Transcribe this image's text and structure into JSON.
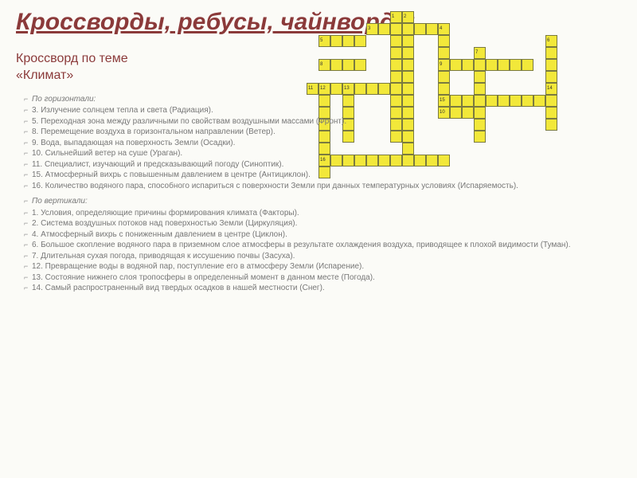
{
  "title": "Кроссворды, ребусы, чайнворды",
  "subtitle_line1": "Кроссворд по теме",
  "subtitle_line2": "«Климат»",
  "horiz_head": "По горизонтали:",
  "horiz": [
    "3. Излучение солнцем тепла и света (Радиация).",
    "5. Переходная зона между различными по свойствам воздушными массами (Фронт).",
    "8. Перемещение воздуха в горизонтальном направлении (Ветер).",
    "9. Вода, выпадающая на поверхность Земли (Осадки).",
    "10. Сильнейший ветер на суше (Ураган).",
    "11. Специалист, изучающий и предсказывающий погоду (Синоптик).",
    "15. Атмосферный вихрь с повышенным давлением в центре (Антициклон).",
    "16. Количество водяного пара, способного испариться с поверхности Земли при данных температурных условиях (Испаряемость)."
  ],
  "vert_head": "По вертикали:",
  "vert": [
    "1. Условия, определяющие причины формирования климата (Факторы).",
    "2. Система воздушных потоков над поверхностью Земли (Циркуляция).",
    "4. Атмосферный вихрь с пониженным давлением в центре (Циклон).",
    "6. Большое скопление водяного пара в приземном слое атмосферы в результате охлаждения воздуха, приводящее к плохой видимости (Туман).",
    "7. Длительная сухая погода, приводящая к иссушению почвы (Засуха).",
    "12. Превращение воды в водяной пар, поступление его в атмосферу Земли (Испарение).",
    "13. Состояние нижнего слоя тропосферы в определенный момент в данном месте (Погода).",
    "14. Самый распространенный вид твердых осадков в нашей местности (Снег)."
  ],
  "crossword": {
    "cell_size": 15,
    "fill_color": "#f2e83a",
    "border_color": "#7a7a40",
    "rows": [
      "........12..............",
      "......3.....4...........",
      "..5..................6..",
      "...............7........",
      "..8.........9...........",
      "........................",
      ".bc..d...............e..",
      "........................",
      "............f...........",
      "........................",
      "........................",
      "........................",
      "..g.....................",
      "........................"
    ],
    "row_defs": [
      [
        [
          8,
          1,
          "1"
        ],
        [
          9,
          1,
          "2"
        ]
      ],
      [
        [
          6,
          1,
          "3"
        ],
        [
          7,
          5,
          ""
        ],
        [
          12,
          1,
          "4"
        ]
      ],
      [
        [
          2,
          1,
          "5"
        ],
        [
          3,
          3,
          ""
        ],
        [
          8,
          2,
          ""
        ],
        [
          12,
          1,
          ""
        ],
        [
          21,
          1,
          "6"
        ]
      ],
      [
        [
          8,
          2,
          ""
        ],
        [
          12,
          1,
          ""
        ],
        [
          15,
          1,
          "7"
        ],
        [
          21,
          1,
          ""
        ]
      ],
      [
        [
          2,
          1,
          "8"
        ],
        [
          3,
          3,
          ""
        ],
        [
          8,
          2,
          ""
        ],
        [
          12,
          1,
          "9"
        ],
        [
          13,
          7,
          ""
        ],
        [
          21,
          1,
          ""
        ]
      ],
      [
        [
          8,
          2,
          ""
        ],
        [
          12,
          1,
          ""
        ],
        [
          15,
          1,
          ""
        ],
        [
          21,
          1,
          ""
        ]
      ],
      [
        [
          1,
          1,
          "11"
        ],
        [
          2,
          1,
          "12"
        ],
        [
          3,
          1,
          ""
        ],
        [
          4,
          1,
          "13"
        ],
        [
          5,
          5,
          ""
        ],
        [
          12,
          1,
          ""
        ],
        [
          15,
          1,
          ""
        ],
        [
          21,
          1,
          "14"
        ]
      ],
      [
        [
          2,
          1,
          ""
        ],
        [
          4,
          1,
          ""
        ],
        [
          8,
          2,
          ""
        ],
        [
          12,
          1,
          "15"
        ],
        [
          13,
          9,
          ""
        ]
      ],
      [
        [
          2,
          1,
          ""
        ],
        [
          4,
          1,
          ""
        ],
        [
          8,
          2,
          ""
        ],
        [
          12,
          1,
          "10"
        ],
        [
          13,
          3,
          ""
        ],
        [
          21,
          1,
          ""
        ]
      ],
      [
        [
          2,
          1,
          ""
        ],
        [
          4,
          1,
          ""
        ],
        [
          8,
          2,
          ""
        ],
        [
          15,
          1,
          ""
        ],
        [
          21,
          1,
          ""
        ]
      ],
      [
        [
          2,
          1,
          ""
        ],
        [
          4,
          1,
          ""
        ],
        [
          8,
          2,
          ""
        ],
        [
          15,
          1,
          ""
        ]
      ],
      [
        [
          2,
          1,
          ""
        ],
        [
          9,
          1,
          ""
        ]
      ],
      [
        [
          2,
          1,
          "16"
        ],
        [
          3,
          10,
          ""
        ]
      ],
      [
        [
          2,
          1,
          ""
        ]
      ]
    ]
  }
}
